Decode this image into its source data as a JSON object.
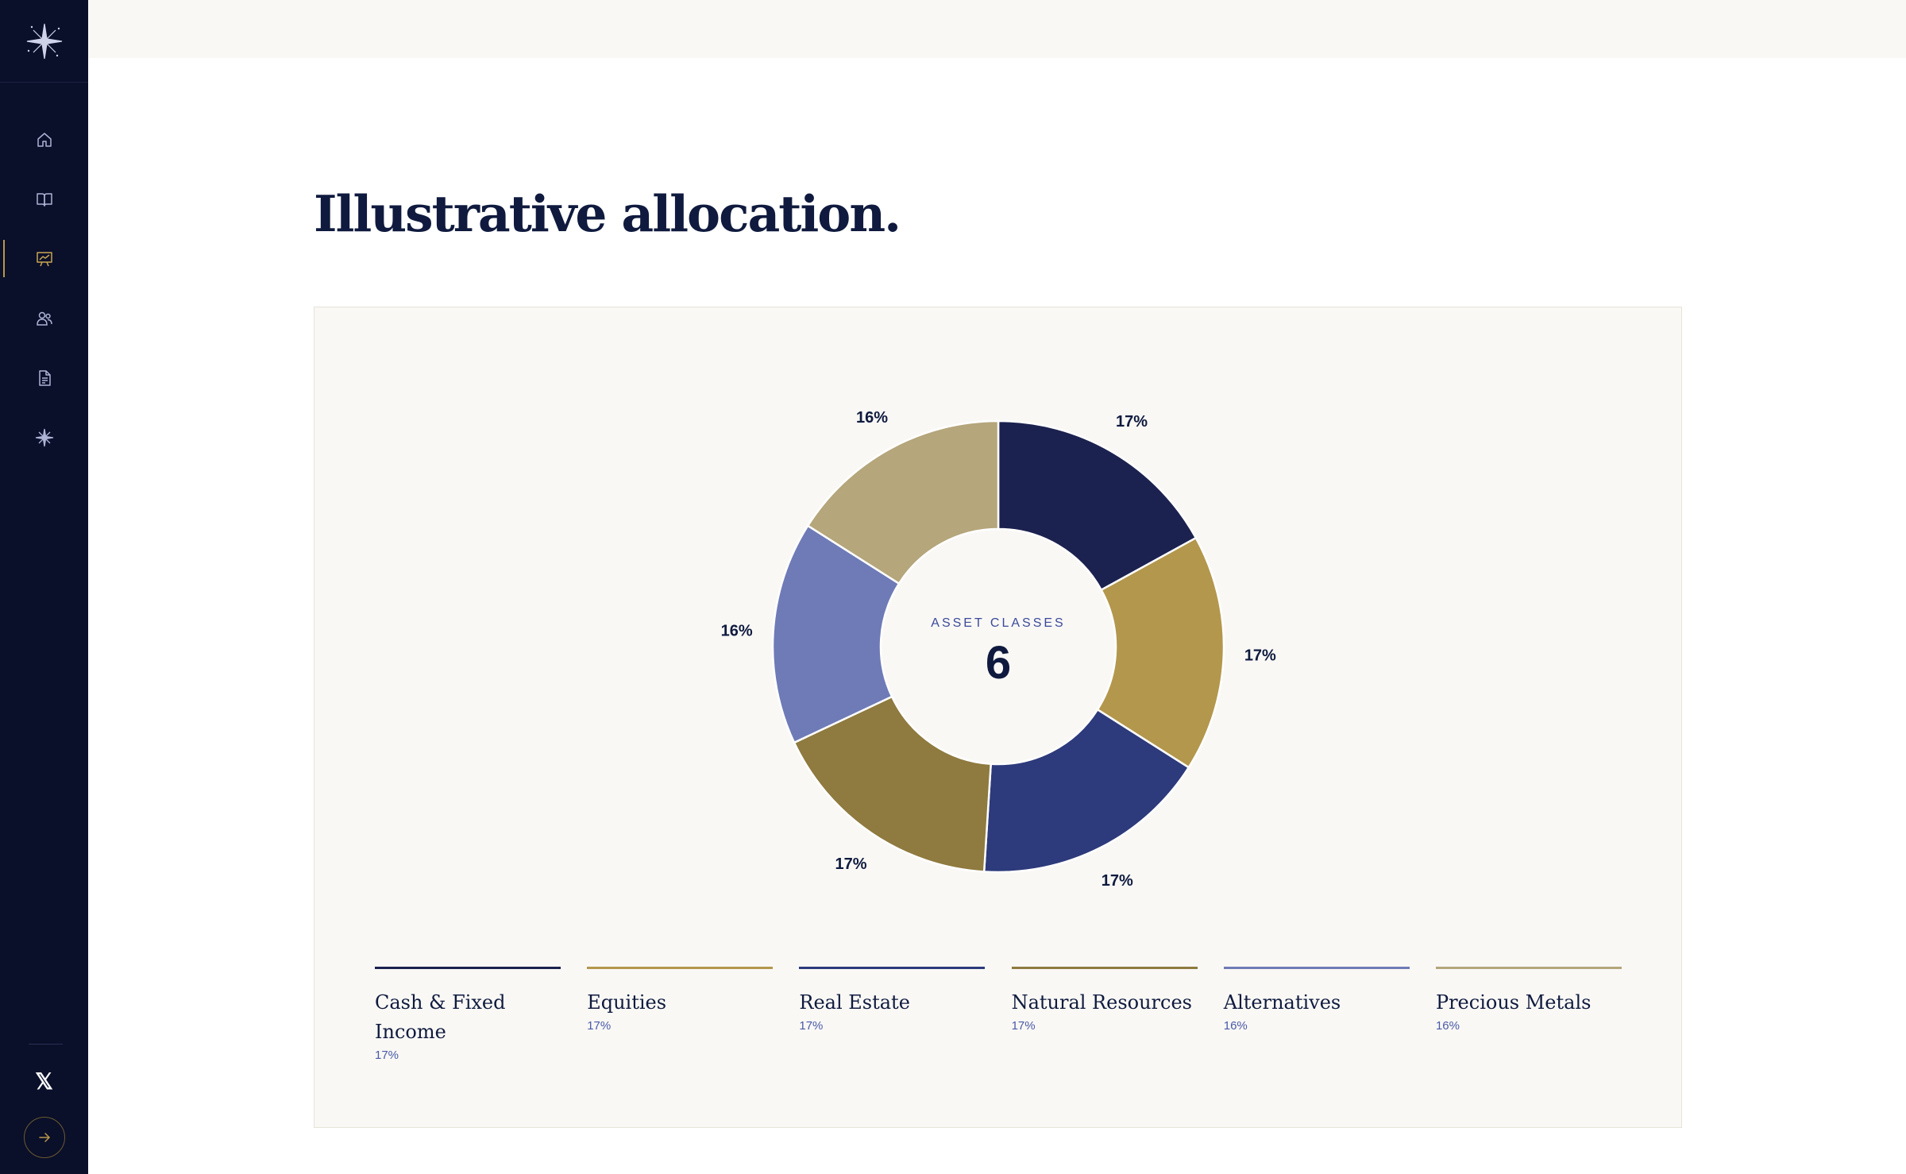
{
  "sidebar": {
    "logo_icon": "compass-star-logo",
    "items": [
      {
        "name": "home",
        "icon": "home-icon",
        "active": false
      },
      {
        "name": "library",
        "icon": "book-icon",
        "active": false
      },
      {
        "name": "presentations",
        "icon": "presentation-chart-icon",
        "active": true
      },
      {
        "name": "clients",
        "icon": "users-icon",
        "active": false
      },
      {
        "name": "documents",
        "icon": "document-icon",
        "active": false
      },
      {
        "name": "spark",
        "icon": "sparkle-icon",
        "active": false
      }
    ],
    "social_label": "𝕏",
    "arrow_icon": "arrow-right-icon"
  },
  "page": {
    "title": "Illustrative allocation."
  },
  "chart_data": {
    "type": "pie",
    "center_label": "ASSET CLASSES",
    "center_value": "6",
    "categories": [
      "Cash & Fixed Income",
      "Equities",
      "Real Estate",
      "Natural Resources",
      "Alternatives",
      "Precious Metals"
    ],
    "values": [
      17,
      17,
      17,
      17,
      16,
      16
    ],
    "labels": [
      "17%",
      "17%",
      "17%",
      "17%",
      "16%",
      "16%"
    ],
    "colors": [
      "#1c224f",
      "#b3974c",
      "#2d3a7b",
      "#8f7a3f",
      "#6f7bb7",
      "#b5a67b"
    ]
  },
  "legend": [
    {
      "name": "Cash & Fixed Income",
      "pct": "17%",
      "color": "#1c224f"
    },
    {
      "name": "Equities",
      "pct": "17%",
      "color": "#b3974c"
    },
    {
      "name": "Real Estate",
      "pct": "17%",
      "color": "#2d3a7b"
    },
    {
      "name": "Natural Resources",
      "pct": "17%",
      "color": "#8f7a3f"
    },
    {
      "name": "Alternatives",
      "pct": "16%",
      "color": "#6f7bb7"
    },
    {
      "name": "Precious Metals",
      "pct": "16%",
      "color": "#b5a67b"
    }
  ],
  "colors": {
    "sidebar_bg": "#0a0f2a",
    "accent_gold": "#b8984a",
    "title": "#0f1a3e",
    "card_bg": "#f9f8f5"
  }
}
